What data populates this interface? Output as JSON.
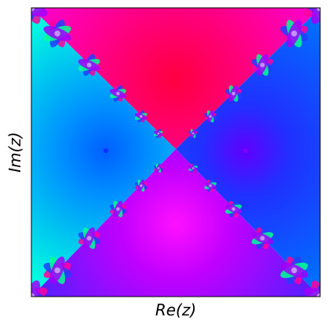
{
  "chart_data": {
    "type": "image",
    "xlabel": "Re(z)",
    "ylabel": "Im(z)"
  }
}
